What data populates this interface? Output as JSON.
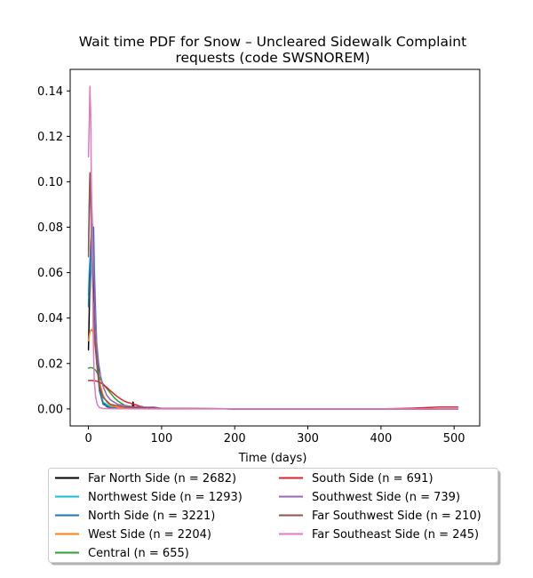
{
  "chart_data": {
    "type": "line",
    "title_line1": "Wait time PDF for Snow – Uncleared Sidewalk Complaint",
    "title_line2": "requests (code SWSNOREM)",
    "xlabel": "Time (days)",
    "ylabel": "",
    "xlim": [
      -25,
      535
    ],
    "ylim": [
      -0.0075,
      0.1495
    ],
    "x_ticks": [
      0,
      100,
      200,
      300,
      400,
      500
    ],
    "y_ticks": [
      0.0,
      0.02,
      0.04,
      0.06,
      0.08,
      0.1,
      0.12,
      0.14
    ],
    "y_tick_labels": [
      "0.00",
      "0.02",
      "0.04",
      "0.06",
      "0.08",
      "0.10",
      "0.12",
      "0.14"
    ],
    "grid": false,
    "legend_placement": "below the axes, two columns",
    "series": [
      {
        "name": "Far North Side (n = 2682)",
        "color": "#000000",
        "points": [
          [
            0,
            0.026
          ],
          [
            1,
            0.041
          ],
          [
            2,
            0.058
          ],
          [
            3,
            0.07
          ],
          [
            4,
            0.078
          ],
          [
            5,
            0.083
          ],
          [
            6,
            0.072
          ],
          [
            7,
            0.055
          ],
          [
            8,
            0.042
          ],
          [
            9,
            0.035
          ],
          [
            10,
            0.03
          ],
          [
            12,
            0.025
          ],
          [
            14,
            0.015
          ],
          [
            17,
            0.006
          ],
          [
            20,
            0.003
          ],
          [
            25,
            0.001
          ],
          [
            30,
            0.0005
          ],
          [
            60,
            0.0008
          ],
          [
            61,
            0.003
          ],
          [
            62,
            0.001
          ],
          [
            70,
            0.0003
          ],
          [
            100,
            0.0001
          ],
          [
            200,
            0.0
          ],
          [
            300,
            0.0
          ],
          [
            400,
            0.0
          ],
          [
            505,
            0.0
          ]
        ]
      },
      {
        "name": "Northwest Side (n = 1293)",
        "color": "#17becf",
        "points": [
          [
            0,
            0.05
          ],
          [
            1,
            0.06
          ],
          [
            2,
            0.066
          ],
          [
            3,
            0.069
          ],
          [
            4,
            0.06
          ],
          [
            5,
            0.055
          ],
          [
            7,
            0.045
          ],
          [
            9,
            0.032
          ],
          [
            12,
            0.018
          ],
          [
            15,
            0.008
          ],
          [
            20,
            0.003
          ],
          [
            30,
            0.0008
          ],
          [
            50,
            0.0003
          ],
          [
            100,
            0.0001
          ],
          [
            200,
            0.0
          ],
          [
            300,
            0.0
          ],
          [
            400,
            0.0
          ],
          [
            505,
            0.0
          ]
        ]
      },
      {
        "name": "North Side (n = 3221)",
        "color": "#1f77b4",
        "points": [
          [
            0,
            0.045
          ],
          [
            1,
            0.055
          ],
          [
            2,
            0.062
          ],
          [
            3,
            0.068
          ],
          [
            4,
            0.074
          ],
          [
            5,
            0.08
          ],
          [
            6,
            0.076
          ],
          [
            7,
            0.08
          ],
          [
            8,
            0.062
          ],
          [
            10,
            0.04
          ],
          [
            12,
            0.022
          ],
          [
            15,
            0.008
          ],
          [
            20,
            0.002
          ],
          [
            30,
            0.0005
          ],
          [
            60,
            0.0002
          ],
          [
            100,
            0.0001
          ],
          [
            200,
            0.0
          ],
          [
            300,
            0.0
          ],
          [
            400,
            0.0
          ],
          [
            505,
            0.0
          ]
        ]
      },
      {
        "name": "West Side (n = 2204)",
        "color": "#ff7f0e",
        "points": [
          [
            0,
            0.03
          ],
          [
            2,
            0.034
          ],
          [
            4,
            0.035
          ],
          [
            6,
            0.034
          ],
          [
            8,
            0.03
          ],
          [
            10,
            0.025
          ],
          [
            12,
            0.018
          ],
          [
            15,
            0.012
          ],
          [
            20,
            0.006
          ],
          [
            25,
            0.003
          ],
          [
            30,
            0.0015
          ],
          [
            40,
            0.0007
          ],
          [
            60,
            0.0003
          ],
          [
            100,
            0.0001
          ],
          [
            200,
            0.0
          ],
          [
            300,
            0.0
          ],
          [
            400,
            0.0
          ],
          [
            505,
            0.0
          ]
        ]
      },
      {
        "name": "Central (n = 655)",
        "color": "#2ca02c",
        "points": [
          [
            0,
            0.018
          ],
          [
            3,
            0.0182
          ],
          [
            6,
            0.018
          ],
          [
            10,
            0.017
          ],
          [
            15,
            0.014
          ],
          [
            20,
            0.011
          ],
          [
            25,
            0.009
          ],
          [
            30,
            0.007
          ],
          [
            35,
            0.005
          ],
          [
            40,
            0.0035
          ],
          [
            45,
            0.0025
          ],
          [
            50,
            0.0015
          ],
          [
            60,
            0.0008
          ],
          [
            80,
            0.0003
          ],
          [
            100,
            0.0001
          ],
          [
            200,
            0.0
          ],
          [
            300,
            0.0
          ],
          [
            400,
            0.0
          ],
          [
            505,
            0.0
          ]
        ]
      },
      {
        "name": "South Side (n = 691)",
        "color": "#d62728",
        "points": [
          [
            0,
            0.0125
          ],
          [
            5,
            0.0125
          ],
          [
            10,
            0.0123
          ],
          [
            15,
            0.0118
          ],
          [
            20,
            0.0108
          ],
          [
            25,
            0.0095
          ],
          [
            30,
            0.008
          ],
          [
            35,
            0.0066
          ],
          [
            40,
            0.0053
          ],
          [
            45,
            0.0042
          ],
          [
            50,
            0.0033
          ],
          [
            55,
            0.0027
          ],
          [
            60,
            0.0023
          ],
          [
            65,
            0.0018
          ],
          [
            70,
            0.0012
          ],
          [
            80,
            0.0006
          ],
          [
            90,
            0.0003
          ],
          [
            100,
            0.0002
          ],
          [
            200,
            0.0
          ],
          [
            300,
            0.0
          ],
          [
            400,
            0.0
          ],
          [
            440,
            0.0003
          ],
          [
            480,
            0.0008
          ],
          [
            505,
            0.0008
          ]
        ]
      },
      {
        "name": "Southwest Side (n = 739)",
        "color": "#9467bd",
        "points": [
          [
            0,
            0.07
          ],
          [
            1,
            0.085
          ],
          [
            2,
            0.1
          ],
          [
            3,
            0.101
          ],
          [
            4,
            0.095
          ],
          [
            5,
            0.085
          ],
          [
            7,
            0.065
          ],
          [
            9,
            0.045
          ],
          [
            11,
            0.03
          ],
          [
            14,
            0.02
          ],
          [
            17,
            0.014
          ],
          [
            20,
            0.01
          ],
          [
            25,
            0.006
          ],
          [
            30,
            0.004
          ],
          [
            40,
            0.002
          ],
          [
            60,
            0.001
          ],
          [
            80,
            0.0007
          ],
          [
            90,
            0.0008
          ],
          [
            100,
            0.0002
          ],
          [
            200,
            0.0
          ],
          [
            300,
            0.0
          ],
          [
            400,
            0.0
          ],
          [
            505,
            0.0
          ]
        ]
      },
      {
        "name": "Far Southwest Side (n = 210)",
        "color": "#8c564b",
        "points": [
          [
            0,
            0.067
          ],
          [
            1,
            0.09
          ],
          [
            2,
            0.104
          ],
          [
            3,
            0.095
          ],
          [
            4,
            0.075
          ],
          [
            6,
            0.05
          ],
          [
            8,
            0.035
          ],
          [
            10,
            0.025
          ],
          [
            12,
            0.018
          ],
          [
            15,
            0.01
          ],
          [
            20,
            0.005
          ],
          [
            30,
            0.002
          ],
          [
            50,
            0.0008
          ],
          [
            100,
            0.0002
          ],
          [
            200,
            0.0
          ],
          [
            300,
            0.0
          ],
          [
            400,
            0.0
          ],
          [
            505,
            0.0
          ]
        ]
      },
      {
        "name": "Far Southeast Side (n = 245)",
        "color": "#e377c2",
        "points": [
          [
            0,
            0.111
          ],
          [
            1,
            0.125
          ],
          [
            2,
            0.142
          ],
          [
            3,
            0.13
          ],
          [
            4,
            0.1
          ],
          [
            5,
            0.07
          ],
          [
            6,
            0.045
          ],
          [
            7,
            0.025
          ],
          [
            8,
            0.012
          ],
          [
            10,
            0.005
          ],
          [
            12,
            0.002
          ],
          [
            15,
            0.0005
          ],
          [
            20,
            0.0002
          ],
          [
            30,
            0.0001
          ],
          [
            100,
            0.0
          ],
          [
            200,
            0.0
          ],
          [
            300,
            0.0
          ],
          [
            400,
            0.0
          ],
          [
            505,
            0.0
          ]
        ]
      }
    ]
  }
}
